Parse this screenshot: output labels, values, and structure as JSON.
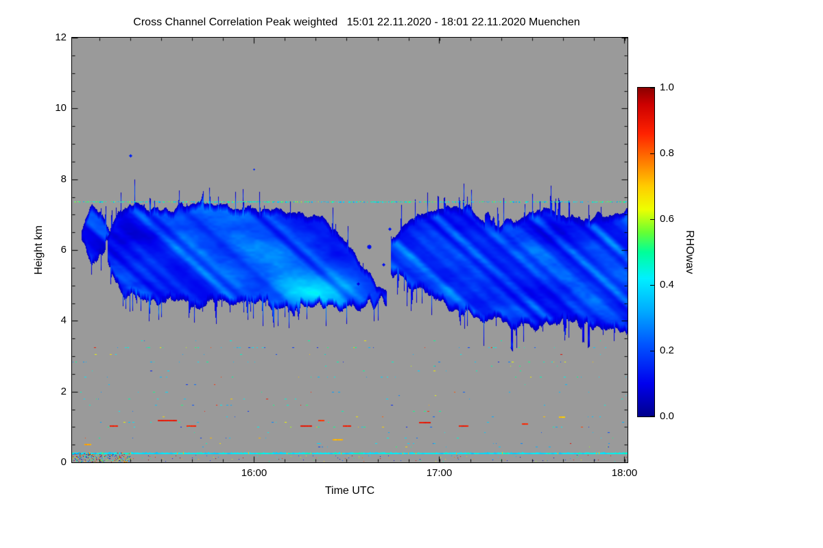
{
  "chart_data": {
    "type": "heatmap",
    "full_title": "Cross Channel Correlation Peak weighted   15:01 22.11.2020 - 18:01 22.11.2020 Muenchen",
    "title": "Cross Channel Correlation Peak weighted",
    "time_period": "15:01 22.11.2020 - 18:01 22.11.2020",
    "station": "Muenchen",
    "xlabel": "Time UTC",
    "ylabel": "Height km",
    "x_range_hours": [
      15.0167,
      18.0167
    ],
    "x_ticks": [
      {
        "value": 16,
        "label": "16:00"
      },
      {
        "value": 17,
        "label": "17:00"
      },
      {
        "value": 18,
        "label": "18:00"
      }
    ],
    "x_minor_step_hours": 0.166667,
    "y_range_km": [
      0,
      12
    ],
    "y_ticks": [
      {
        "value": 0,
        "label": "0"
      },
      {
        "value": 2,
        "label": "2"
      },
      {
        "value": 4,
        "label": "4"
      },
      {
        "value": 6,
        "label": "6"
      },
      {
        "value": 8,
        "label": "8"
      },
      {
        "value": 10,
        "label": "10"
      },
      {
        "value": 12,
        "label": "12"
      }
    ],
    "y_minor_step_km": 0.5,
    "no_data_color": "#9a9a9a",
    "colorbar": {
      "label": "RHOwav",
      "min": 0,
      "max": 1,
      "ticks": [
        "0.0",
        "0.2",
        "0.4",
        "0.6",
        "0.8",
        "1.0"
      ],
      "stops": [
        [
          0.0,
          "#00008C"
        ],
        [
          0.1,
          "#0000EE"
        ],
        [
          0.22,
          "#0055FF"
        ],
        [
          0.32,
          "#00AAFF"
        ],
        [
          0.42,
          "#00F0FF"
        ],
        [
          0.5,
          "#00FF99"
        ],
        [
          0.56,
          "#66FF33"
        ],
        [
          0.63,
          "#EEFF00"
        ],
        [
          0.7,
          "#FFCC00"
        ],
        [
          0.78,
          "#FF7700"
        ],
        [
          0.86,
          "#FF2200"
        ],
        [
          0.95,
          "#CC0000"
        ],
        [
          1.0,
          "#8B0000"
        ]
      ]
    },
    "features": {
      "clouds": [
        {
          "t0": 15.07,
          "t1": 15.23,
          "seed": 11,
          "vbase": 0.11,
          "vamp": 0.12,
          "top_pts": [
            [
              15.07,
              6.55
            ],
            [
              15.12,
              7.15
            ],
            [
              15.18,
              6.95
            ],
            [
              15.23,
              6.5
            ]
          ],
          "base_pts": [
            [
              15.07,
              6.2
            ],
            [
              15.12,
              5.75
            ],
            [
              15.18,
              5.9
            ],
            [
              15.23,
              6.3
            ]
          ]
        },
        {
          "t0": 15.21,
          "t1": 16.71,
          "seed": 1,
          "vbase": 0.13,
          "vamp": 0.16,
          "top_pts": [
            [
              15.21,
              6.4
            ],
            [
              15.3,
              7.3
            ],
            [
              15.5,
              7.1
            ],
            [
              15.75,
              7.3
            ],
            [
              16.0,
              7.25
            ],
            [
              16.2,
              7.1
            ],
            [
              16.4,
              6.8
            ],
            [
              16.55,
              5.8
            ],
            [
              16.71,
              4.8
            ]
          ],
          "base_pts": [
            [
              15.21,
              5.7
            ],
            [
              15.3,
              4.75
            ],
            [
              15.45,
              4.55
            ],
            [
              15.8,
              4.5
            ],
            [
              16.2,
              4.45
            ],
            [
              16.5,
              4.4
            ],
            [
              16.65,
              4.45
            ],
            [
              16.71,
              4.6
            ]
          ]
        },
        {
          "t0": 16.74,
          "t1": 18.03,
          "seed": 2,
          "vbase": 0.12,
          "vamp": 0.15,
          "top_pts": [
            [
              16.74,
              6.2
            ],
            [
              16.85,
              6.85
            ],
            [
              17.0,
              7.1
            ],
            [
              17.15,
              7.2
            ],
            [
              17.3,
              6.7
            ],
            [
              17.45,
              6.9
            ],
            [
              17.6,
              7.1
            ],
            [
              17.75,
              6.85
            ],
            [
              17.9,
              7.0
            ],
            [
              18.03,
              7.15
            ]
          ],
          "base_pts": [
            [
              16.74,
              5.4
            ],
            [
              16.85,
              5.0
            ],
            [
              17.0,
              4.55
            ],
            [
              17.15,
              4.2
            ],
            [
              17.3,
              3.95
            ],
            [
              17.5,
              3.85
            ],
            [
              17.7,
              3.95
            ],
            [
              17.85,
              3.9
            ],
            [
              18.03,
              3.8
            ]
          ]
        }
      ],
      "bright_cores": [
        {
          "t": 16.35,
          "km": 4.85,
          "dt": 0.18,
          "dkm": 0.35,
          "amp": 0.2
        },
        {
          "t": 15.9,
          "km": 5.9,
          "dt": 0.3,
          "dkm": 0.8,
          "amp": 0.07
        },
        {
          "t": 17.15,
          "km": 5.4,
          "dt": 0.3,
          "dkm": 0.8,
          "amp": 0.06
        },
        {
          "t": 17.95,
          "km": 5.2,
          "dt": 0.2,
          "dkm": 0.8,
          "amp": 0.06
        }
      ],
      "blobs": [
        {
          "t": 15.33,
          "km": 8.68,
          "r": 2,
          "v": 0.15
        },
        {
          "t": 16.0,
          "km": 8.28,
          "r": 1,
          "v": 0.16
        },
        {
          "t": 16.62,
          "km": 6.1,
          "r": 3,
          "v": 0.12
        },
        {
          "t": 16.7,
          "km": 5.6,
          "r": 2,
          "v": 0.12
        },
        {
          "t": 16.56,
          "km": 5.05,
          "r": 2,
          "v": 0.1
        },
        {
          "t": 16.73,
          "km": 6.6,
          "r": 2,
          "v": 0.13
        }
      ],
      "speckle_line_km": 7.38,
      "bottom_line_km": 0.28,
      "speckle_rows": [
        {
          "km": 3.45,
          "d": 0.008
        },
        {
          "km": 3.25,
          "d": 0.05
        },
        {
          "km": 3.05,
          "d": 0.018
        },
        {
          "km": 2.85,
          "d": 0.032
        },
        {
          "km": 2.72,
          "d": 0.01
        },
        {
          "km": 2.6,
          "d": 0.014
        },
        {
          "km": 2.42,
          "d": 0.024
        },
        {
          "km": 2.2,
          "d": 0.012
        },
        {
          "km": 2.0,
          "d": 0.02
        },
        {
          "km": 1.9,
          "d": 0.008
        },
        {
          "km": 1.8,
          "d": 0.012
        },
        {
          "km": 1.62,
          "d": 0.02
        },
        {
          "km": 1.45,
          "d": 0.012
        },
        {
          "km": 1.3,
          "d": 0.016
        },
        {
          "km": 1.15,
          "d": 0.02
        },
        {
          "km": 1.0,
          "d": 0.024
        },
        {
          "km": 0.85,
          "d": 0.014
        },
        {
          "km": 0.7,
          "d": 0.018
        },
        {
          "km": 0.55,
          "d": 0.014
        },
        {
          "km": 0.45,
          "d": 0.012
        }
      ],
      "streaks": [
        {
          "t": 15.24,
          "km": 1.05,
          "len": 0.04,
          "v": 0.88
        },
        {
          "t": 15.53,
          "km": 1.2,
          "len": 0.1,
          "v": 0.9
        },
        {
          "t": 15.66,
          "km": 1.05,
          "len": 0.05,
          "v": 0.86
        },
        {
          "t": 16.28,
          "km": 1.05,
          "len": 0.06,
          "v": 0.9
        },
        {
          "t": 16.36,
          "km": 1.2,
          "len": 0.03,
          "v": 0.85
        },
        {
          "t": 16.5,
          "km": 1.05,
          "len": 0.04,
          "v": 0.88
        },
        {
          "t": 16.92,
          "km": 1.15,
          "len": 0.06,
          "v": 0.9
        },
        {
          "t": 17.13,
          "km": 1.05,
          "len": 0.05,
          "v": 0.88
        },
        {
          "t": 17.46,
          "km": 1.1,
          "len": 0.03,
          "v": 0.86
        },
        {
          "t": 16.45,
          "km": 0.65,
          "len": 0.05,
          "v": 0.72
        },
        {
          "t": 15.1,
          "km": 0.52,
          "len": 0.03,
          "v": 0.74
        },
        {
          "t": 17.66,
          "km": 1.3,
          "len": 0.03,
          "v": 0.7
        }
      ]
    }
  }
}
